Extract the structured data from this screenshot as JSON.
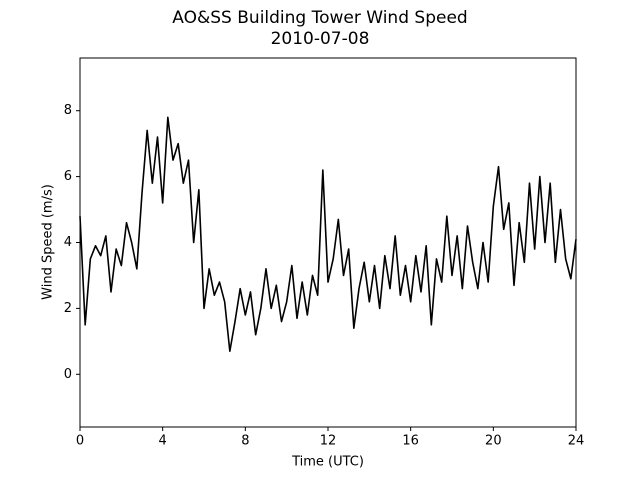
{
  "chart_data": {
    "type": "line",
    "title": "AO&SS Building Tower Wind Speed",
    "subtitle": "2010-07-08",
    "xlabel": "Time (UTC)",
    "ylabel": "Wind Speed (m/s)",
    "x": [
      0,
      0.25,
      0.5,
      0.75,
      1,
      1.25,
      1.5,
      1.75,
      2,
      2.25,
      2.5,
      2.75,
      3,
      3.25,
      3.5,
      3.75,
      4,
      4.25,
      4.5,
      4.75,
      5,
      5.25,
      5.5,
      5.75,
      6,
      6.25,
      6.5,
      6.75,
      7,
      7.25,
      7.5,
      7.75,
      8,
      8.25,
      8.5,
      8.75,
      9,
      9.25,
      9.5,
      9.75,
      10,
      10.25,
      10.5,
      10.75,
      11,
      11.25,
      11.5,
      11.75,
      12,
      12.25,
      12.5,
      12.75,
      13,
      13.25,
      13.5,
      13.75,
      14,
      14.25,
      14.5,
      14.75,
      15,
      15.25,
      15.5,
      15.75,
      16,
      16.25,
      16.5,
      16.75,
      17,
      17.25,
      17.5,
      17.75,
      18,
      18.25,
      18.5,
      18.75,
      19,
      19.25,
      19.5,
      19.75,
      20,
      20.25,
      20.5,
      20.75,
      21,
      21.25,
      21.5,
      21.75,
      22,
      22.25,
      22.5,
      22.75,
      23,
      23.25,
      23.5,
      23.75,
      24
    ],
    "series": [
      {
        "name": "Wind Speed",
        "color": "#000000",
        "values": [
          4.8,
          1.5,
          3.5,
          3.9,
          3.6,
          4.2,
          2.5,
          3.8,
          3.3,
          4.6,
          4.0,
          3.2,
          5.5,
          7.4,
          5.8,
          7.2,
          5.2,
          7.8,
          6.5,
          7.0,
          5.8,
          6.5,
          4.0,
          5.6,
          2.0,
          3.2,
          2.4,
          2.8,
          2.2,
          0.7,
          1.6,
          2.6,
          1.8,
          2.5,
          1.2,
          2.0,
          3.2,
          2.0,
          2.7,
          1.6,
          2.2,
          3.3,
          1.7,
          2.8,
          1.8,
          3.0,
          2.4,
          6.2,
          2.8,
          3.5,
          4.7,
          3.0,
          3.8,
          1.4,
          2.6,
          3.4,
          2.2,
          3.3,
          2.0,
          3.6,
          2.6,
          4.2,
          2.4,
          3.3,
          2.2,
          3.6,
          2.5,
          3.9,
          1.5,
          3.5,
          2.8,
          4.8,
          3.0,
          4.2,
          2.6,
          4.5,
          3.4,
          2.6,
          4.0,
          2.8,
          5.1,
          6.3,
          4.4,
          5.2,
          2.7,
          4.6,
          3.4,
          5.8,
          3.8,
          6.0,
          4.0,
          5.8,
          3.4,
          5.0,
          3.5,
          2.9,
          4.1
        ]
      }
    ],
    "xlim": [
      0,
      24
    ],
    "xticks": [
      0,
      4,
      8,
      12,
      16,
      20,
      24
    ],
    "ylim": [
      -1.6,
      9.6
    ],
    "yticks": [
      0,
      2,
      4,
      6,
      8
    ]
  }
}
